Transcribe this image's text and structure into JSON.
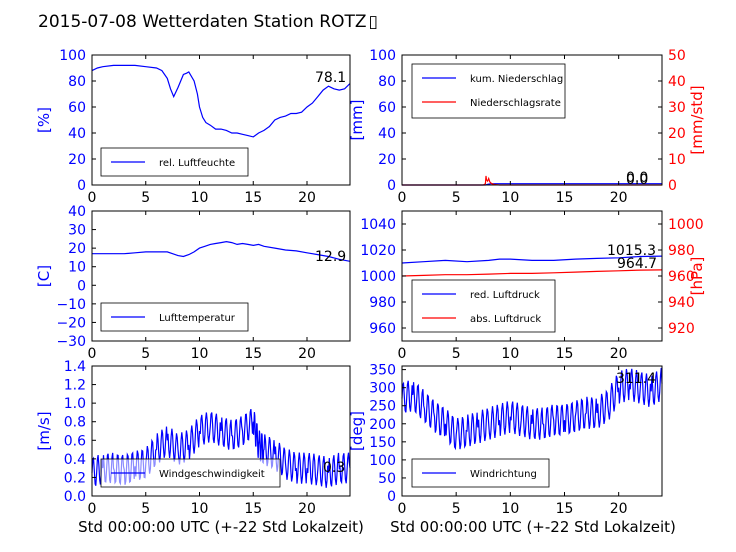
{
  "page_title": "2015-07-08 Wetterdaten Station ROTZ",
  "title_glyph": "▯",
  "xlabel": "Std 00:00:00 UTC (+-22 Std Lokalzeit)",
  "colors": {
    "primary": "#0000ff",
    "secondary": "#ff0000",
    "text": "#000000"
  },
  "chart_data": [
    {
      "type": "line",
      "ylabel": "[%]",
      "xlim": [
        0,
        24
      ],
      "ylim": [
        0,
        100
      ],
      "xticks": [
        "0",
        "5",
        "10",
        "15",
        "20"
      ],
      "yticks": [
        "0",
        "20",
        "40",
        "60",
        "80",
        "100"
      ],
      "last_value": "78.1",
      "legend": [
        {
          "name": "rel. Luftfeuchte",
          "color": "#0000ff"
        }
      ],
      "series": [
        {
          "name": "rel. Luftfeuchte",
          "color": "#0000ff",
          "x": [
            0,
            0.5,
            1,
            2,
            3,
            4,
            5,
            6,
            6.5,
            7,
            7.3,
            7.6,
            8,
            8.5,
            8.8,
            9,
            9.5,
            9.8,
            10,
            10.3,
            10.6,
            11,
            11.5,
            12,
            12.5,
            13,
            13.5,
            14,
            14.5,
            15,
            15.5,
            16,
            16.5,
            17,
            17.5,
            18,
            18.5,
            19,
            19.5,
            20,
            20.5,
            21,
            21.5,
            22,
            22.5,
            23,
            23.5,
            24
          ],
          "y": [
            88,
            90,
            91,
            92,
            92,
            92,
            91,
            90,
            88,
            82,
            74,
            68,
            75,
            85,
            86,
            87,
            80,
            70,
            60,
            52,
            48,
            46,
            43,
            43,
            42,
            40,
            40,
            39,
            38,
            37,
            40,
            42,
            45,
            50,
            52,
            53,
            55,
            55,
            56,
            60,
            63,
            68,
            73,
            76,
            74,
            73,
            74,
            78.1
          ]
        }
      ]
    },
    {
      "type": "line",
      "ylabel": "[mm]",
      "ylabel_right": "[mm/std]",
      "xlim": [
        0,
        24
      ],
      "ylim": [
        0,
        100
      ],
      "ylim_right": [
        0,
        50
      ],
      "xticks": [
        "0",
        "5",
        "10",
        "15",
        "20"
      ],
      "yticks": [
        "0",
        "20",
        "40",
        "60",
        "80",
        "100"
      ],
      "yticks_right": [
        "0",
        "10",
        "20",
        "30",
        "40",
        "50"
      ],
      "last_value": "0.0",
      "last_value_2": "0.0",
      "legend": [
        {
          "name": "kum. Niederschlag",
          "color": "#0000ff"
        },
        {
          "name": "Niederschlagsrate",
          "color": "#ff0000"
        }
      ],
      "series": [
        {
          "name": "kum. Niederschlag",
          "color": "#0000ff",
          "axis": "left",
          "x": [
            0,
            7.7,
            7.9,
            8.2,
            24
          ],
          "y": [
            0,
            0,
            0.5,
            1,
            1
          ]
        },
        {
          "name": "Niederschlagsrate",
          "color": "#ff0000",
          "axis": "right",
          "x": [
            0,
            7.5,
            7.7,
            7.75,
            7.8,
            7.9,
            8.0,
            8.1,
            8.2,
            8.3,
            8.5,
            9,
            24
          ],
          "y": [
            0,
            0,
            0.5,
            3.5,
            2,
            1.5,
            2.5,
            1.2,
            0.8,
            0.5,
            0.2,
            0,
            0
          ]
        }
      ]
    },
    {
      "type": "line",
      "ylabel": "[C]",
      "xlim": [
        0,
        24
      ],
      "ylim": [
        -30,
        40
      ],
      "xticks": [
        "0",
        "5",
        "10",
        "15",
        "20"
      ],
      "yticks": [
        "−30",
        "−20",
        "−10",
        "0",
        "10",
        "20",
        "30",
        "40"
      ],
      "last_value": "12.9",
      "legend": [
        {
          "name": "Lufttemperatur",
          "color": "#0000ff"
        }
      ],
      "series": [
        {
          "name": "Lufttemperatur",
          "color": "#0000ff",
          "x": [
            0,
            1,
            2,
            3,
            4,
            5,
            6,
            7,
            7.5,
            8,
            8.5,
            9,
            9.5,
            10,
            10.5,
            11,
            11.5,
            12,
            12.5,
            13,
            13.5,
            14,
            14.5,
            15,
            15.5,
            16,
            17,
            18,
            19,
            20,
            21,
            22,
            23,
            24
          ],
          "y": [
            17,
            17,
            17,
            17,
            17.5,
            18,
            18,
            18,
            17,
            16,
            15.5,
            16.5,
            18,
            20,
            21,
            22,
            22.5,
            23,
            23.5,
            23,
            22,
            22.5,
            22,
            21.5,
            22,
            21,
            20,
            19,
            18.5,
            17.5,
            16.5,
            15.5,
            14,
            12.9
          ]
        }
      ]
    },
    {
      "type": "line",
      "ylabel_right": "[hPa]",
      "xlim": [
        0,
        24
      ],
      "ylim": [
        950,
        1050
      ],
      "ylim_right": [
        910,
        1010
      ],
      "xticks": [
        "0",
        "5",
        "10",
        "15",
        "20"
      ],
      "yticks": [
        "960",
        "980",
        "1000",
        "1020",
        "1040"
      ],
      "yticks_right": [
        "920",
        "940",
        "960",
        "980",
        "1000"
      ],
      "last_value": "1015.3",
      "last_value_2": "964.7",
      "legend": [
        {
          "name": "red. Luftdruck",
          "color": "#0000ff"
        },
        {
          "name": "abs. Luftdruck",
          "color": "#ff0000"
        }
      ],
      "series": [
        {
          "name": "red. Luftdruck",
          "color": "#0000ff",
          "axis": "left",
          "x": [
            0,
            2,
            4,
            6,
            8,
            9,
            10,
            12,
            14,
            16,
            18,
            20,
            22,
            24
          ],
          "y": [
            1010,
            1011,
            1012,
            1011,
            1012,
            1013,
            1013,
            1012,
            1012,
            1013,
            1013.5,
            1014,
            1015,
            1015.3
          ]
        },
        {
          "name": "abs. Luftdruck",
          "color": "#ff0000",
          "axis": "right",
          "x": [
            0,
            2,
            4,
            6,
            8,
            10,
            12,
            14,
            16,
            18,
            20,
            22,
            24
          ],
          "y": [
            960,
            960.5,
            961,
            961,
            961.5,
            962,
            962,
            962.5,
            963,
            963.5,
            964,
            964.5,
            964.7
          ]
        }
      ]
    },
    {
      "type": "line",
      "ylabel": "[m/s]",
      "xlim": [
        0,
        24
      ],
      "ylim": [
        0,
        1.4
      ],
      "xticks": [
        "0",
        "5",
        "10",
        "15",
        "20"
      ],
      "yticks": [
        "0.0",
        "0.2",
        "0.4",
        "0.6",
        "0.8",
        "1.0",
        "1.2",
        "1.4"
      ],
      "last_value": "0.3",
      "legend": [
        {
          "name": "Windgeschwindigkeit",
          "color": "#0000ff"
        }
      ],
      "series": [
        {
          "name": "Windgeschwindigkeit",
          "color": "#0000ff",
          "x": [
            0,
            1,
            2,
            3,
            4,
            5,
            6,
            7,
            8,
            9,
            10,
            11,
            12,
            13,
            14,
            15,
            15.5,
            16,
            17,
            18,
            19,
            20,
            21,
            22,
            23,
            24
          ],
          "y": [
            0.25,
            0.3,
            0.3,
            0.28,
            0.32,
            0.35,
            0.5,
            0.6,
            0.5,
            0.55,
            0.7,
            0.75,
            0.7,
            0.65,
            0.7,
            0.8,
            0.55,
            0.5,
            0.45,
            0.35,
            0.3,
            0.3,
            0.28,
            0.25,
            0.3,
            0.3
          ]
        }
      ]
    },
    {
      "type": "line",
      "ylabel": "[deg]",
      "xlim": [
        0,
        24
      ],
      "ylim": [
        0,
        360
      ],
      "xticks": [
        "0",
        "5",
        "10",
        "15",
        "20"
      ],
      "yticks": [
        "0",
        "50",
        "100",
        "150",
        "200",
        "250",
        "300",
        "350"
      ],
      "last_value": "311.4",
      "legend": [
        {
          "name": "Windrichtung",
          "color": "#0000ff"
        }
      ],
      "series": [
        {
          "name": "Windrichtung",
          "color": "#0000ff",
          "x": [
            0,
            1,
            2,
            3,
            4,
            5,
            6,
            7,
            8,
            9,
            10,
            11,
            12,
            13,
            14,
            15,
            16,
            17,
            18,
            19,
            20,
            21,
            22,
            23,
            24
          ],
          "y": [
            270,
            280,
            250,
            220,
            200,
            170,
            180,
            190,
            200,
            210,
            220,
            210,
            200,
            200,
            210,
            210,
            220,
            230,
            230,
            250,
            300,
            310,
            300,
            290,
            311.4
          ]
        }
      ]
    }
  ]
}
